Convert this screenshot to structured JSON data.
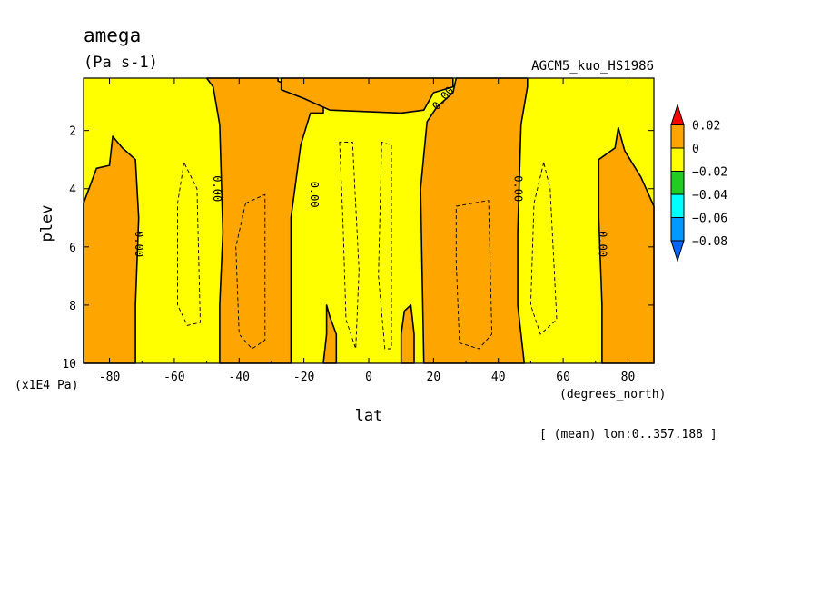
{
  "chart_data": {
    "type": "contour",
    "title": "amega",
    "units": "(Pa s-1)",
    "run_name": "AGCM5_kuo_HS1986",
    "xlabel": "lat",
    "xunits": "(degrees_north)",
    "ylabel": "plev",
    "yunits": "(x1E4 Pa)",
    "footnote": "[ (mean) lon:0..357.188 ]",
    "xlim": [
      -88,
      88
    ],
    "ylim": [
      10,
      0.2
    ],
    "x_ticks": [
      -80,
      -60,
      -40,
      -20,
      0,
      20,
      40,
      60,
      80
    ],
    "x_tick_labels": [
      "-80",
      "-60",
      "-40",
      "-20",
      "0",
      "20",
      "40",
      "60",
      "80"
    ],
    "y_ticks": [
      2,
      4,
      6,
      8,
      10
    ],
    "y_tick_labels": [
      "2",
      "4",
      "6",
      "8",
      "10"
    ],
    "contour_label": "0.00",
    "colorbar": {
      "levels": [
        0.02,
        0,
        -0.02,
        -0.04,
        -0.06,
        -0.08
      ],
      "labels": [
        "0.02",
        "0",
        "−0.02",
        "−0.04",
        "−0.06",
        "−0.08"
      ],
      "colors": {
        "above_0.02": "#ff0000",
        "0_to_0.02": "#ffa500",
        "-0.02_to_0": "#ffff00",
        "-0.04_to_-0.02": "#22cc22",
        "-0.06_to_-0.04": "#00ffff",
        "-0.08_to_-0.06": "#0099ff",
        "below_-0.08": "#0066ff"
      }
    },
    "positive_regions": [
      {
        "name": "north-polar-edge",
        "polygon": [
          [
            -88,
            4.5
          ],
          [
            -84,
            3.3
          ],
          [
            -80,
            3.2
          ],
          [
            -79,
            2.2
          ],
          [
            -76,
            2.6
          ],
          [
            -72,
            3.0
          ],
          [
            -71,
            5.0
          ],
          [
            -72,
            8.0
          ],
          [
            -72,
            10
          ],
          [
            -88,
            10
          ]
        ]
      },
      {
        "name": "southern-mid",
        "polygon": [
          [
            -50,
            0.2
          ],
          [
            -48,
            0.5
          ],
          [
            -46,
            1.8
          ],
          [
            -45,
            5.5
          ],
          [
            -46,
            8
          ],
          [
            -46,
            10
          ],
          [
            -24,
            10
          ],
          [
            -24,
            5
          ],
          [
            -21,
            2.5
          ],
          [
            -18,
            1.4
          ],
          [
            -14,
            1.4
          ],
          [
            -14,
            0.9
          ],
          [
            -28,
            0.3
          ],
          [
            -28,
            0.2
          ]
        ]
      },
      {
        "name": "southern-tongue",
        "polygon": [
          [
            -13,
            8
          ],
          [
            -12,
            8.4
          ],
          [
            -10,
            9.0
          ],
          [
            -10,
            10
          ],
          [
            -14,
            10
          ],
          [
            -13,
            9
          ]
        ]
      },
      {
        "name": "upper-bar",
        "polygon": [
          [
            -27,
            0.2
          ],
          [
            26,
            0.2
          ],
          [
            26,
            0.5
          ],
          [
            20,
            0.7
          ],
          [
            17,
            1.3
          ],
          [
            10,
            1.4
          ],
          [
            -12,
            1.3
          ],
          [
            -20,
            0.9
          ],
          [
            -27,
            0.6
          ]
        ]
      },
      {
        "name": "northern-tongue",
        "polygon": [
          [
            11,
            8.2
          ],
          [
            13,
            8.0
          ],
          [
            14,
            9.0
          ],
          [
            14,
            10
          ],
          [
            10,
            10
          ],
          [
            10,
            9.0
          ]
        ]
      },
      {
        "name": "northern-mid",
        "polygon": [
          [
            18,
            1.7
          ],
          [
            21,
            1.2
          ],
          [
            26,
            0.7
          ],
          [
            27,
            0.2
          ],
          [
            49,
            0.2
          ],
          [
            49,
            0.5
          ],
          [
            47,
            1.8
          ],
          [
            46,
            5.5
          ],
          [
            46,
            8
          ],
          [
            48,
            10
          ],
          [
            17,
            10
          ],
          [
            16,
            4
          ]
        ]
      },
      {
        "name": "south-polar-edge",
        "polygon": [
          [
            71,
            3.0
          ],
          [
            76,
            2.6
          ],
          [
            77,
            1.9
          ],
          [
            79,
            2.7
          ],
          [
            84,
            3.6
          ],
          [
            88,
            4.6
          ],
          [
            88,
            10
          ],
          [
            72,
            10
          ],
          [
            72,
            8
          ],
          [
            71,
            5
          ]
        ]
      }
    ],
    "negative_dashed_contours": [
      {
        "name": "neg-ring-1",
        "polygon": [
          [
            -57,
            3.1
          ],
          [
            -59,
            4.5
          ],
          [
            -59,
            8
          ],
          [
            -56,
            8.7
          ],
          [
            -52,
            8.6
          ],
          [
            -53,
            4.0
          ]
        ]
      },
      {
        "name": "neg-ring-2",
        "polygon": [
          [
            -9,
            2.4
          ],
          [
            -8,
            5
          ],
          [
            -7,
            8.5
          ],
          [
            -4,
            9.5
          ],
          [
            -3,
            6.8
          ],
          [
            -5,
            2.4
          ]
        ]
      },
      {
        "name": "neg-ring-3",
        "polygon": [
          [
            4,
            2.4
          ],
          [
            3,
            7
          ],
          [
            5,
            9.5
          ],
          [
            7,
            9.5
          ],
          [
            7,
            5
          ],
          [
            7,
            2.5
          ]
        ]
      },
      {
        "name": "neg-ring-4",
        "polygon": [
          [
            54,
            3.1
          ],
          [
            51,
            4.5
          ],
          [
            50,
            8
          ],
          [
            53,
            9
          ],
          [
            58,
            8.5
          ],
          [
            56,
            4.0
          ]
        ]
      }
    ],
    "positive_dashed_contours": [
      {
        "name": "pos-inner-1",
        "polygon": [
          [
            -38,
            4.5
          ],
          [
            -32,
            4.2
          ],
          [
            -32,
            9.2
          ],
          [
            -36,
            9.5
          ],
          [
            -40,
            9.0
          ],
          [
            -41,
            6.0
          ]
        ]
      },
      {
        "name": "pos-inner-2",
        "polygon": [
          [
            27,
            4.6
          ],
          [
            37,
            4.4
          ],
          [
            38,
            9.0
          ],
          [
            34,
            9.5
          ],
          [
            28,
            9.3
          ],
          [
            27,
            6.5
          ]
        ]
      }
    ],
    "zero_contour_labels": [
      {
        "x": -71,
        "y": 5.9
      },
      {
        "x": -47,
        "y": 4.0
      },
      {
        "x": -17,
        "y": 4.2
      },
      {
        "x": 23,
        "y": 0.9
      },
      {
        "x": 46,
        "y": 4.0
      },
      {
        "x": 72,
        "y": 5.9
      }
    ]
  }
}
